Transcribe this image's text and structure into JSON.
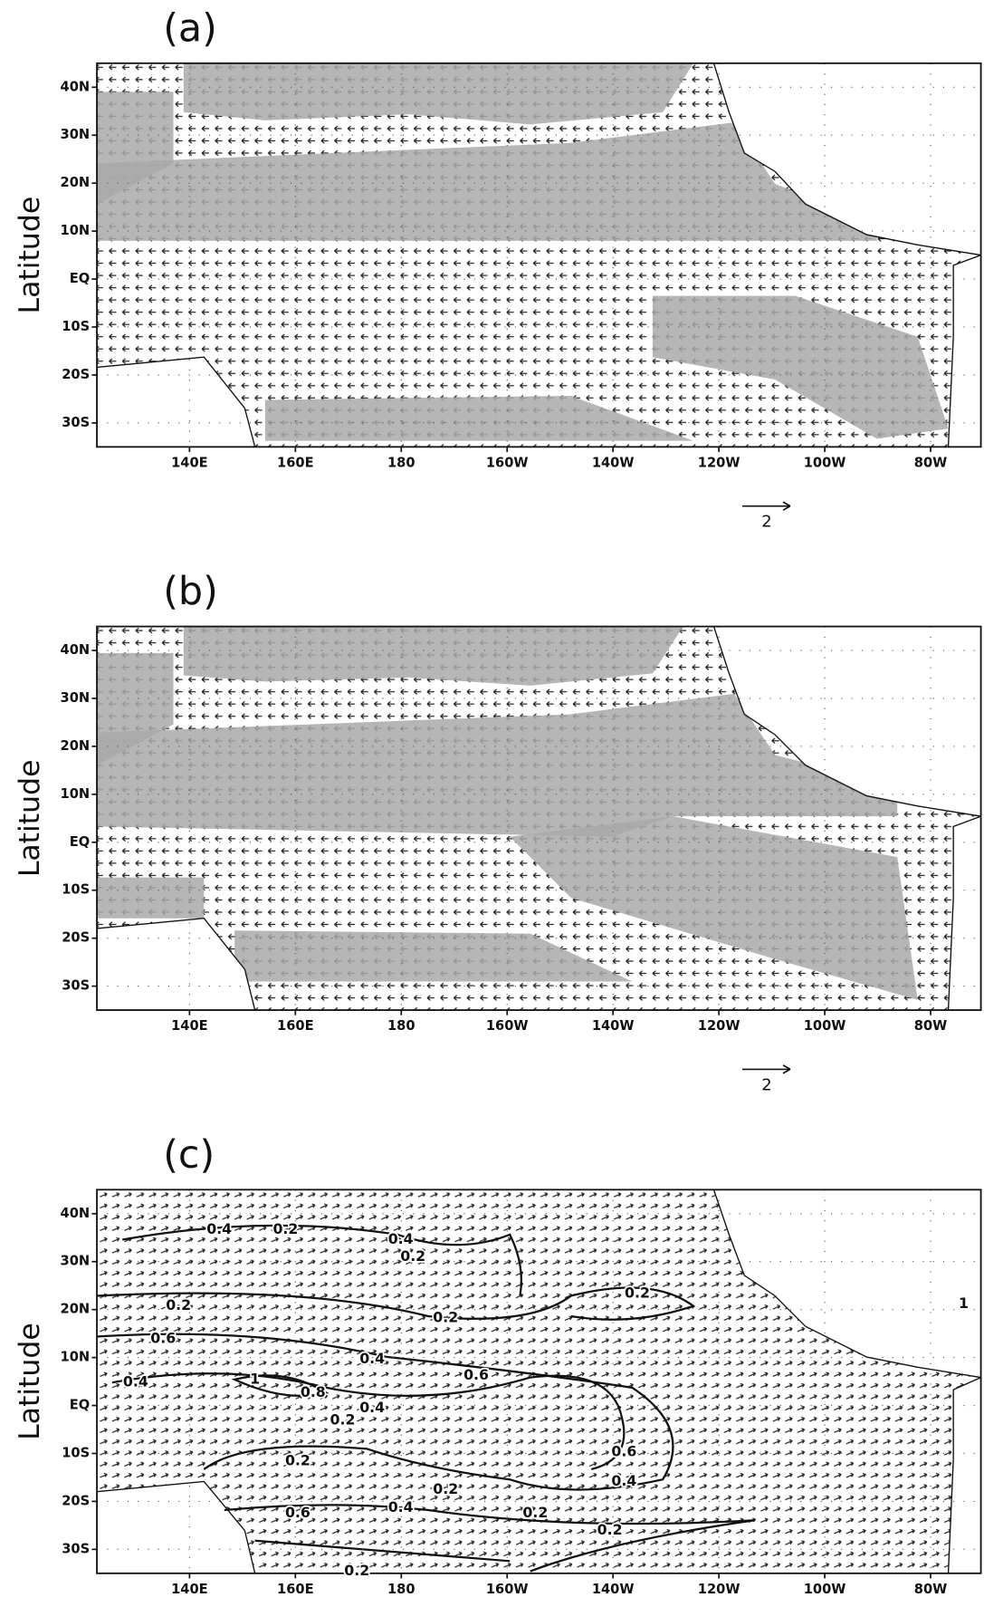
{
  "chart_data": [
    {
      "type": "quiver",
      "panel_label": "(a)",
      "ylabel": "Latitude",
      "reference_vector": 2,
      "xlim": [
        122.5,
        289.5
      ],
      "ylim": [
        -35,
        45
      ],
      "xticks": [
        {
          "value": 140,
          "label": "140E"
        },
        {
          "value": 160,
          "label": "160E"
        },
        180,
        {
          "value": 200,
          "label": "160W"
        },
        {
          "value": 220,
          "label": "140W"
        },
        {
          "value": 240,
          "label": "120W"
        },
        {
          "value": 260,
          "label": "100W"
        },
        {
          "value": 280,
          "label": "80W"
        }
      ],
      "yticks": [
        {
          "value": 40,
          "label": "40N"
        },
        {
          "value": 30,
          "label": "30N"
        },
        {
          "value": 20,
          "label": "20N"
        },
        {
          "value": 10,
          "label": "10N"
        },
        {
          "value": 0,
          "label": "EQ"
        },
        {
          "value": -10,
          "label": "10S"
        },
        {
          "value": -20,
          "label": "20S"
        },
        {
          "value": -30,
          "label": "30S"
        }
      ]
    },
    {
      "type": "quiver",
      "panel_label": "(b)",
      "ylabel": "Latitude",
      "reference_vector": 2,
      "xlim": [
        122.5,
        289.5
      ],
      "ylim": [
        -35,
        45
      ],
      "xticks": [
        {
          "value": 140,
          "label": "140E"
        },
        {
          "value": 160,
          "label": "160E"
        },
        180,
        {
          "value": 200,
          "label": "160W"
        },
        {
          "value": 220,
          "label": "140W"
        },
        {
          "value": 240,
          "label": "120W"
        },
        {
          "value": 260,
          "label": "100W"
        },
        {
          "value": 280,
          "label": "80W"
        }
      ],
      "yticks": [
        {
          "value": 40,
          "label": "40N"
        },
        {
          "value": 30,
          "label": "30N"
        },
        {
          "value": 20,
          "label": "20N"
        },
        {
          "value": 10,
          "label": "10N"
        },
        {
          "value": 0,
          "label": "EQ"
        },
        {
          "value": -10,
          "label": "10S"
        },
        {
          "value": -20,
          "label": "20S"
        },
        {
          "value": -30,
          "label": "30S"
        }
      ]
    },
    {
      "type": "quiver-contour",
      "panel_label": "(c)",
      "ylabel": "Latitude",
      "xlim": [
        122.5,
        289.5
      ],
      "ylim": [
        -35,
        45
      ],
      "xticks": [
        {
          "value": 140,
          "label": "140E"
        },
        {
          "value": 160,
          "label": "160E"
        },
        180,
        {
          "value": 200,
          "label": "160W"
        },
        {
          "value": 220,
          "label": "140W"
        },
        {
          "value": 240,
          "label": "120W"
        },
        {
          "value": 260,
          "label": "100W"
        },
        {
          "value": 280,
          "label": "80W"
        }
      ],
      "yticks": [
        {
          "value": 40,
          "label": "40N"
        },
        {
          "value": 30,
          "label": "30N"
        },
        {
          "value": 20,
          "label": "20N"
        },
        {
          "value": 10,
          "label": "10N"
        },
        {
          "value": 0,
          "label": "EQ"
        },
        {
          "value": -10,
          "label": "10S"
        },
        {
          "value": -20,
          "label": "20S"
        },
        {
          "value": -30,
          "label": "30S"
        }
      ],
      "contour_labels": [
        0.4,
        0.2,
        0.4,
        0.2,
        0.2,
        0.2,
        0.2,
        0.6,
        0.4,
        0.6,
        0.4,
        1,
        0.8,
        0.4,
        0.2,
        0.6,
        0.2,
        0.4,
        0.2,
        0.6,
        0.4,
        0.2,
        0.2,
        0.2,
        1
      ]
    }
  ]
}
